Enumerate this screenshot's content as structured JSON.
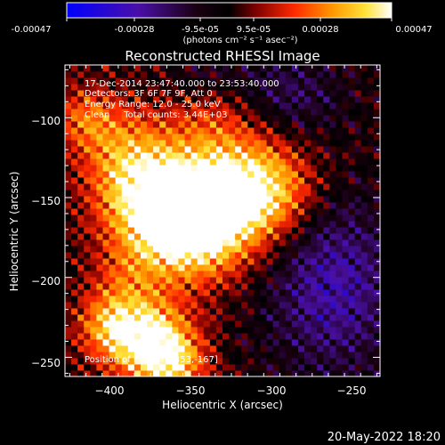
{
  "colorbar": {
    "ticks": [
      "-0.00047",
      "-0.00028",
      "-9.5e-05",
      "9.5e-05",
      "0.00028",
      "0.00047"
    ],
    "unit_label": "(photons cm⁻² s⁻¹ asec⁻²)",
    "range": [
      -0.00047,
      0.00047
    ]
  },
  "chart_data": {
    "type": "heatmap",
    "title": "Reconstructed RHESSI Image",
    "xlabel": "Heliocentric X (arcsec)",
    "ylabel": "Heliocentric Y (arcsec)",
    "xlim": [
      -428,
      -233
    ],
    "ylim": [
      -262,
      -67
    ],
    "x_ticks": [
      -400,
      -350,
      -300,
      -250
    ],
    "y_ticks": [
      -100,
      -150,
      -200,
      -250
    ],
    "x_tick_labels": [
      "−400",
      "−350",
      "−300",
      "−250"
    ],
    "y_tick_labels": [
      "−100",
      "−150",
      "−200",
      "−250"
    ],
    "colormap": "red-temperature",
    "annotations": [
      "17-Dec-2014 23:47:40.000 to 23:53:40.000",
      "Detectors: 3F 6F 7F 9F, Att 0",
      "Energy Range: 12.0 - 25.0 keV",
      "Clean     Total counts: 3.44E+03"
    ],
    "peak_label": "Position of Peak = [-353,-167]",
    "peak_position": [
      -353,
      -167
    ]
  },
  "footer": {
    "date": "20-May-2022 18:20"
  },
  "colors": {
    "background": "#000000",
    "text": "#ffffff"
  }
}
